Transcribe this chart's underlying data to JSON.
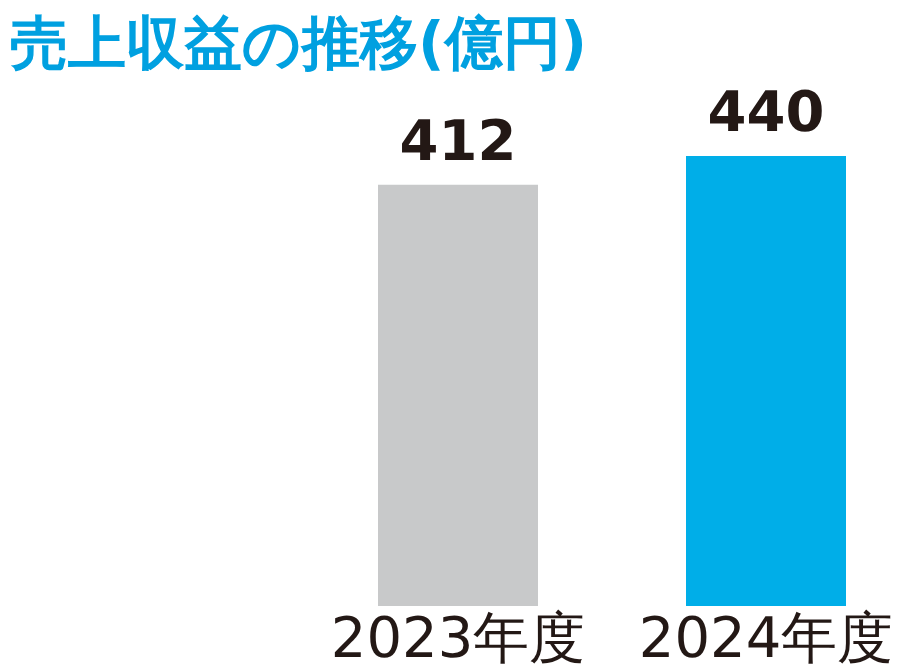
{
  "chart_data": {
    "type": "bar",
    "title": "売上収益の推移(億円)",
    "categories": [
      "2023年度",
      "2024年度"
    ],
    "values": [
      412,
      440
    ],
    "colors": [
      "#c8c9ca",
      "#00aee8"
    ],
    "data_labels": true
  }
}
